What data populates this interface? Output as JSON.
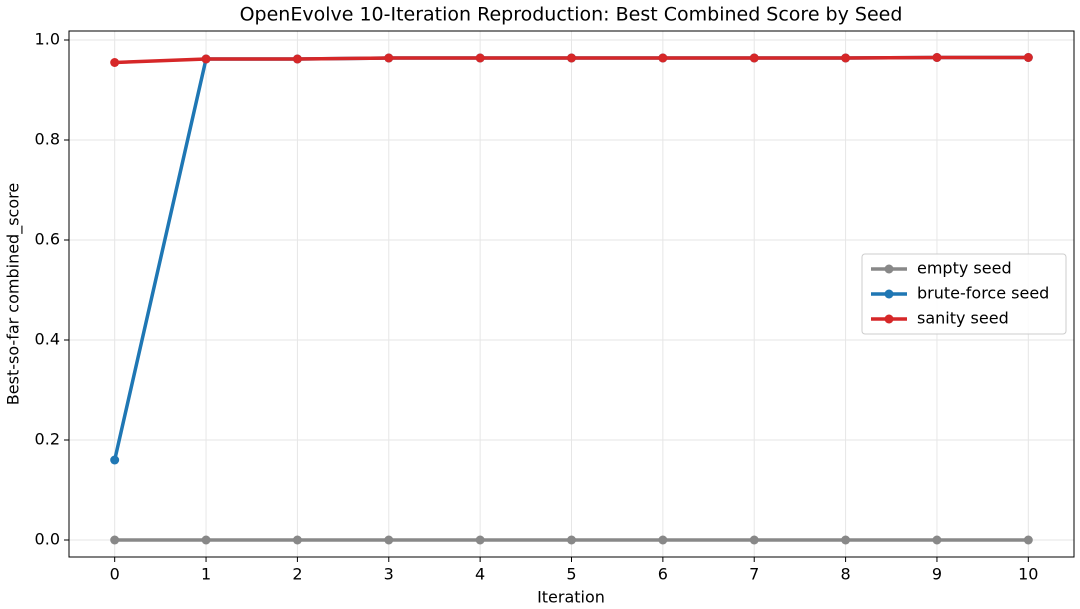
{
  "chart_data": {
    "type": "line",
    "title": "OpenEvolve 10-Iteration Reproduction: Best Combined Score by Seed",
    "xlabel": "Iteration",
    "ylabel": "Best-so-far combined_score",
    "x": [
      0,
      1,
      2,
      3,
      4,
      5,
      6,
      7,
      8,
      9,
      10
    ],
    "series": [
      {
        "name": "empty seed",
        "color": "#888888",
        "values": [
          0,
          0,
          0,
          0,
          0,
          0,
          0,
          0,
          0,
          0,
          0
        ]
      },
      {
        "name": "brute-force seed",
        "color": "#1f77b4",
        "values": [
          0.16,
          0.962,
          0.962,
          0.964,
          0.964,
          0.964,
          0.964,
          0.964,
          0.964,
          0.965,
          0.965
        ]
      },
      {
        "name": "sanity seed",
        "color": "#d62728",
        "values": [
          0.955,
          0.962,
          0.962,
          0.964,
          0.964,
          0.964,
          0.964,
          0.964,
          0.964,
          0.965,
          0.965
        ]
      }
    ],
    "xlim": [
      -0.5,
      10.5
    ],
    "ylim": [
      -0.034,
      1.018
    ],
    "xticks": [
      0,
      1,
      2,
      3,
      4,
      5,
      6,
      7,
      8,
      9,
      10
    ],
    "yticks": [
      {
        "value": 0,
        "label": "0.0"
      },
      0.2,
      0.4,
      0.6,
      0.8,
      {
        "value": 1,
        "label": "1.0"
      }
    ],
    "grid": true,
    "legend": "right"
  }
}
